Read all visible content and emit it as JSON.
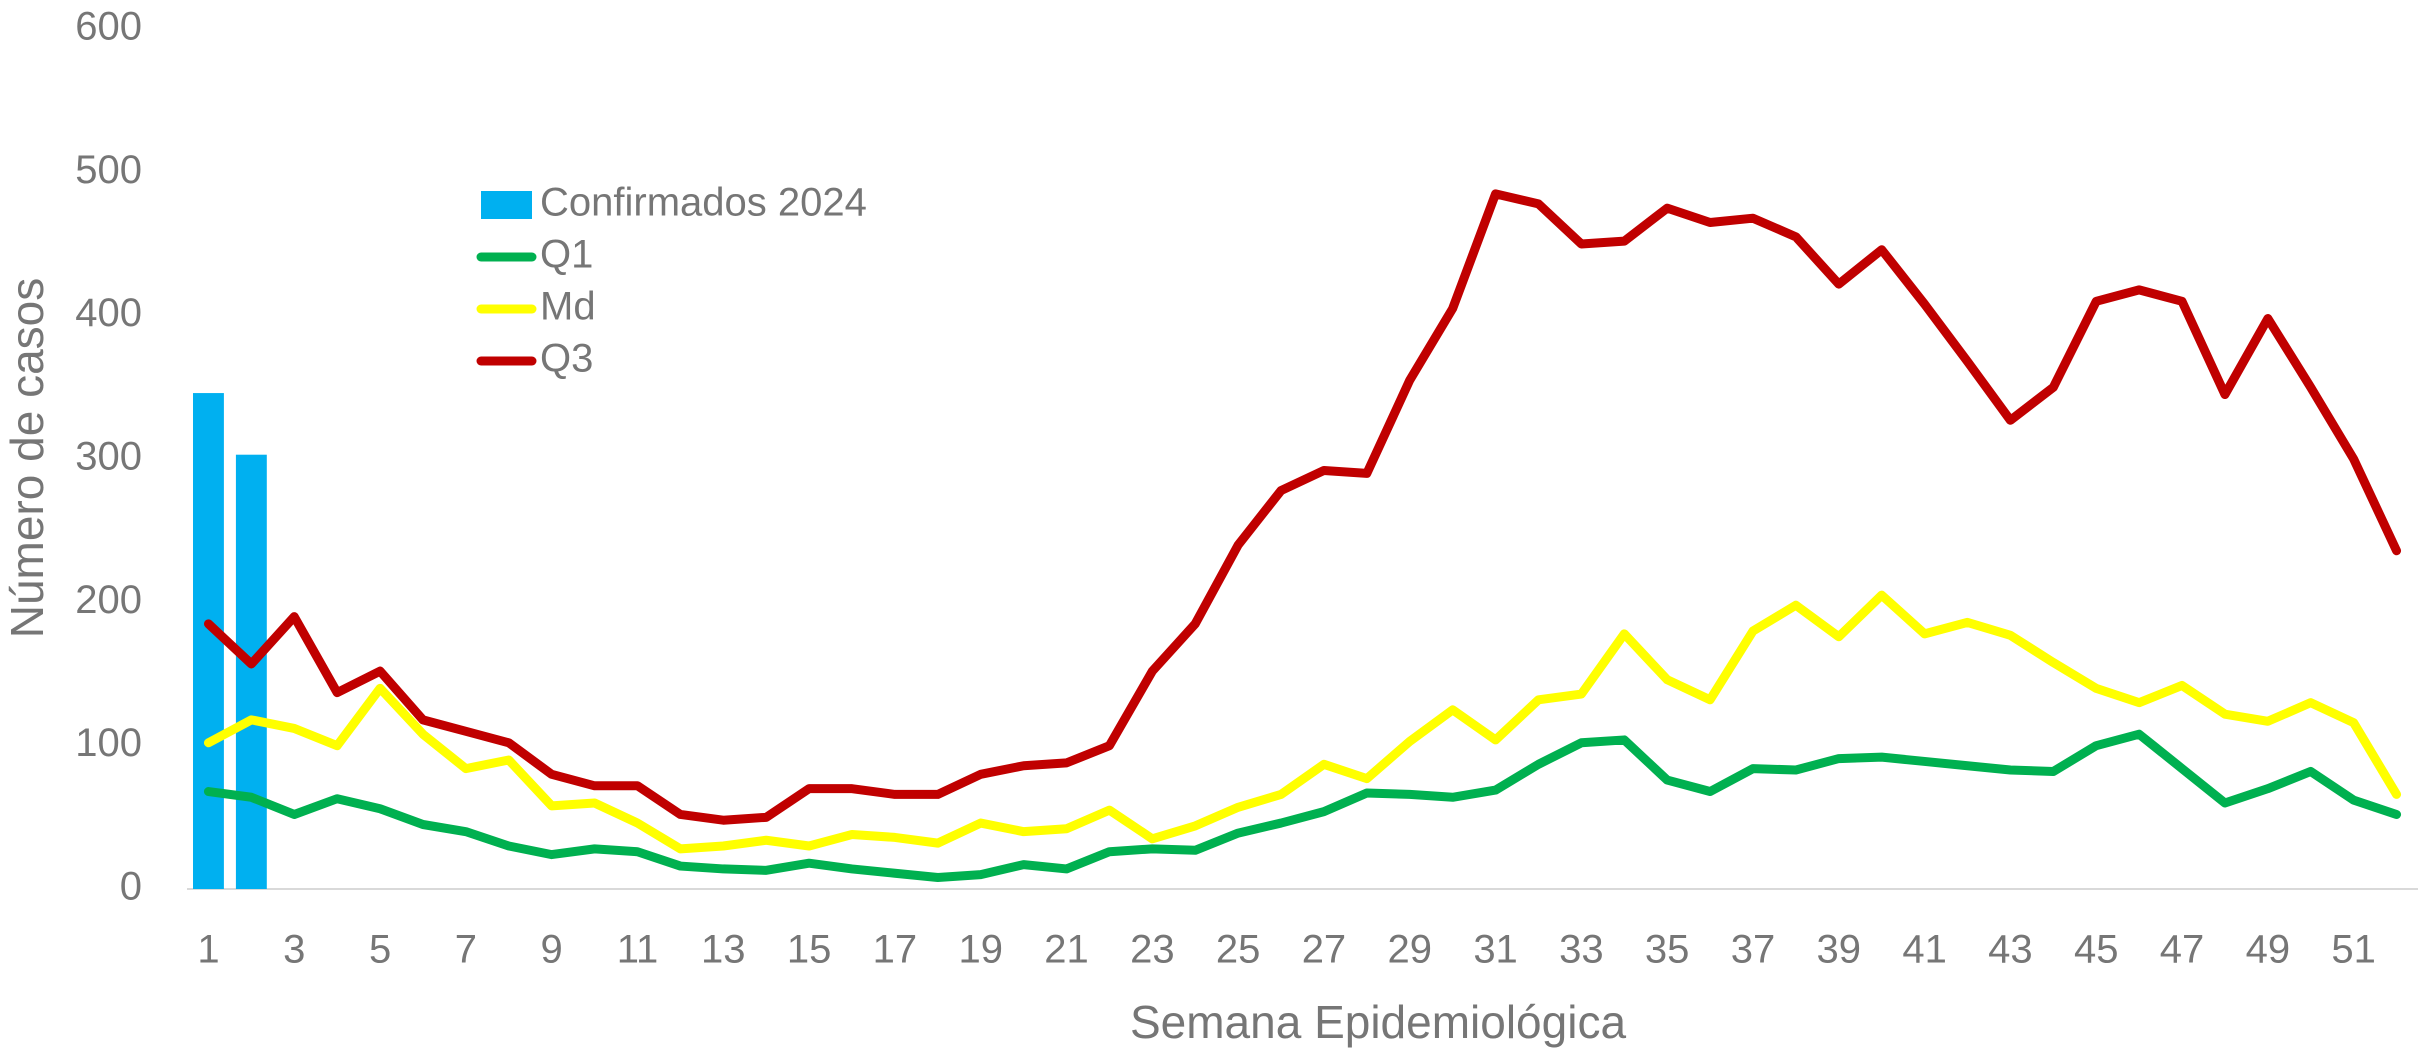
{
  "chart_data": {
    "type": "combo",
    "x_label": "Semana Epidemiológica",
    "y_label": "Número de casos",
    "categories": [
      "1",
      null,
      "3",
      null,
      "5",
      null,
      "7",
      null,
      "9",
      null,
      "11",
      null,
      "13",
      null,
      "15",
      null,
      "17",
      null,
      "19",
      null,
      "21",
      null,
      "23",
      null,
      "25",
      null,
      "27",
      null,
      "29",
      null,
      "31",
      null,
      "33",
      null,
      "35",
      null,
      "37",
      null,
      "39",
      null,
      "41",
      null,
      "43",
      null,
      "45",
      null,
      "47",
      null,
      "49",
      null,
      "51",
      null
    ],
    "ylim": [
      0,
      600
    ],
    "yticks": [
      0,
      100,
      200,
      300,
      400,
      500,
      600
    ],
    "grid": false,
    "legend": "upper left",
    "series": [
      {
        "name": "Confirmados 2024",
        "type": "bar",
        "color": "#00b0f0",
        "values": [
          346,
          303,
          null,
          null,
          null,
          null,
          null,
          null,
          null,
          null,
          null,
          null,
          null,
          null,
          null,
          null,
          null,
          null,
          null,
          null,
          null,
          null,
          null,
          null,
          null,
          null,
          null,
          null,
          null,
          null,
          null,
          null,
          null,
          null,
          null,
          null,
          null,
          null,
          null,
          null,
          null,
          null,
          null,
          null,
          null,
          null,
          null,
          null,
          null,
          null,
          null,
          null
        ]
      },
      {
        "name": "Q1",
        "type": "line",
        "color": "#00b050",
        "values": [
          68,
          64,
          52,
          63,
          56,
          45,
          40,
          30,
          24,
          28,
          26,
          16,
          14,
          13,
          18,
          14,
          11,
          8,
          10,
          17,
          14,
          26,
          28,
          27,
          39,
          46,
          54,
          67,
          66,
          64,
          69,
          87,
          102,
          104,
          76,
          68,
          84,
          83,
          91,
          92,
          89,
          86,
          83,
          82,
          100,
          108,
          84,
          60,
          70,
          82,
          62,
          52
        ]
      },
      {
        "name": "Md",
        "type": "line",
        "color": "#ffff00",
        "values": [
          102,
          118,
          112,
          100,
          140,
          108,
          84,
          90,
          58,
          60,
          46,
          28,
          30,
          34,
          30,
          38,
          36,
          32,
          46,
          40,
          42,
          55,
          35,
          44,
          57,
          66,
          87,
          77,
          103,
          125,
          104,
          132,
          136,
          178,
          146,
          132,
          180,
          198,
          176,
          205,
          178,
          186,
          177,
          158,
          140,
          130,
          142,
          122,
          117,
          130,
          116,
          66
        ]
      },
      {
        "name": "Q3",
        "type": "line",
        "color": "#c00000",
        "values": [
          185,
          157,
          190,
          137,
          152,
          118,
          110,
          102,
          80,
          72,
          72,
          52,
          48,
          50,
          70,
          70,
          66,
          66,
          80,
          86,
          88,
          100,
          152,
          185,
          240,
          278,
          292,
          290,
          355,
          405,
          485,
          478,
          450,
          452,
          475,
          465,
          468,
          455,
          422,
          446,
          408,
          368,
          327,
          350,
          410,
          418,
          410,
          345,
          398,
          350,
          300,
          236
        ]
      }
    ]
  }
}
